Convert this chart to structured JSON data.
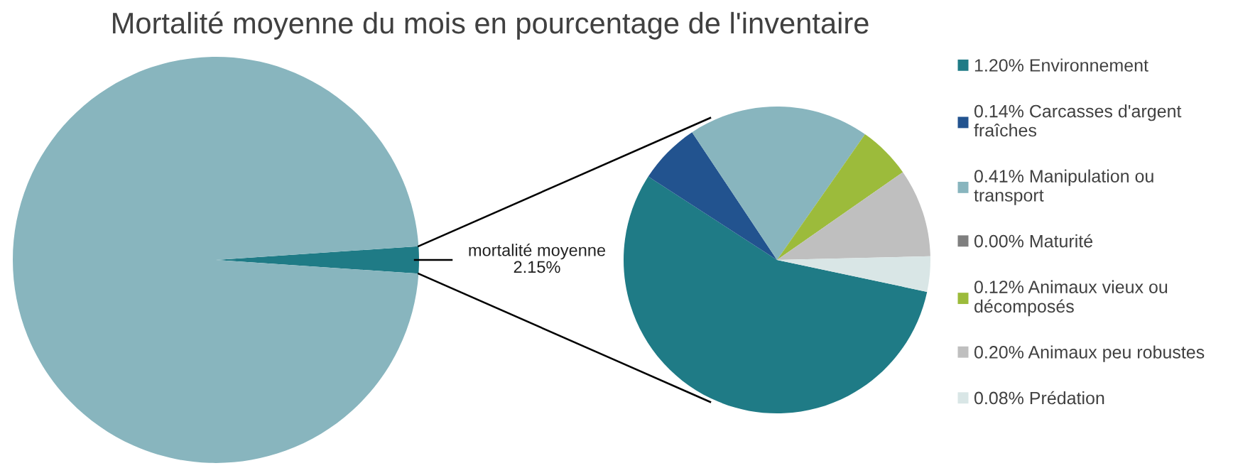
{
  "chart_data": [
    {
      "type": "pie",
      "title": "Mortalité moyenne du mois en pourcentage de l'inventaire",
      "categories": [
        "mortalité moyenne",
        null
      ],
      "values": [
        2.15,
        97.85
      ],
      "colors": [
        "#1f7b86",
        "#88b5be"
      ],
      "value_labels": [
        "2.15%",
        null
      ]
    },
    {
      "type": "pie",
      "categories": [
        "Environnement",
        "Carcasses d'argent fraîches",
        "Manipulation ou transport",
        "Maturité",
        "Animaux vieux ou décomposés",
        "Animaux peu robustes",
        "Prédation"
      ],
      "values": [
        1.2,
        0.14,
        0.41,
        0.0,
        0.12,
        0.2,
        0.08
      ],
      "colors": [
        "#1f7b86",
        "#22538f",
        "#88b5be",
        "#7f7f7f",
        "#9cbb3b",
        "#bfbfbf",
        "#d9e6e6"
      ],
      "value_labels": [
        "1.20%",
        "0.14%",
        "0.41%",
        "0.00%",
        "0.12%",
        "0.20%",
        "0.08%"
      ],
      "legend": "right"
    }
  ]
}
